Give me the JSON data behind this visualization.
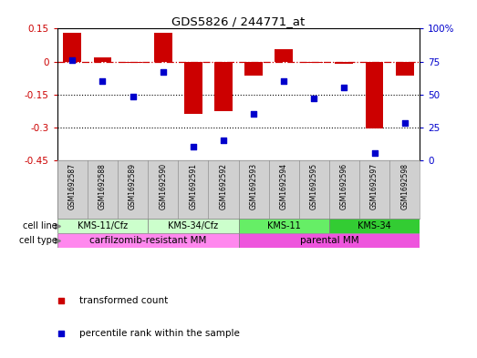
{
  "title": "GDS5826 / 244771_at",
  "samples": [
    "GSM1692587",
    "GSM1692588",
    "GSM1692589",
    "GSM1692590",
    "GSM1692591",
    "GSM1692592",
    "GSM1692593",
    "GSM1692594",
    "GSM1692595",
    "GSM1692596",
    "GSM1692597",
    "GSM1692598"
  ],
  "transformed_count": [
    0.13,
    0.02,
    -0.005,
    0.13,
    -0.24,
    -0.225,
    -0.065,
    0.055,
    -0.005,
    -0.01,
    -0.305,
    -0.065
  ],
  "percentile_rank": [
    76,
    60,
    48,
    67,
    10,
    15,
    35,
    60,
    47,
    55,
    5,
    28
  ],
  "ylim_left": [
    -0.45,
    0.15
  ],
  "ylim_right": [
    0,
    100
  ],
  "yticks_left": [
    0.15,
    0,
    -0.15,
    -0.3,
    -0.45
  ],
  "yticks_right": [
    100,
    75,
    50,
    25,
    0
  ],
  "hlines": [
    -0.15,
    -0.3
  ],
  "bar_color": "#cc0000",
  "scatter_color": "#0000cc",
  "dashdot_color": "#cc0000",
  "sample_bg": "#d0d0d0",
  "cell_lines": [
    {
      "label": "KMS-11/Cfz",
      "start": 0,
      "end": 3,
      "color": "#ccffcc"
    },
    {
      "label": "KMS-34/Cfz",
      "start": 3,
      "end": 6,
      "color": "#ccffcc"
    },
    {
      "label": "KMS-11",
      "start": 6,
      "end": 9,
      "color": "#66ee66"
    },
    {
      "label": "KMS-34",
      "start": 9,
      "end": 12,
      "color": "#33cc33"
    }
  ],
  "cell_types": [
    {
      "label": "carfilzomib-resistant MM",
      "start": 0,
      "end": 6,
      "color": "#ff88ee"
    },
    {
      "label": "parental MM",
      "start": 6,
      "end": 12,
      "color": "#ee55dd"
    }
  ],
  "legend_items": [
    {
      "label": "transformed count",
      "color": "#cc0000"
    },
    {
      "label": "percentile rank within the sample",
      "color": "#0000cc"
    }
  ]
}
